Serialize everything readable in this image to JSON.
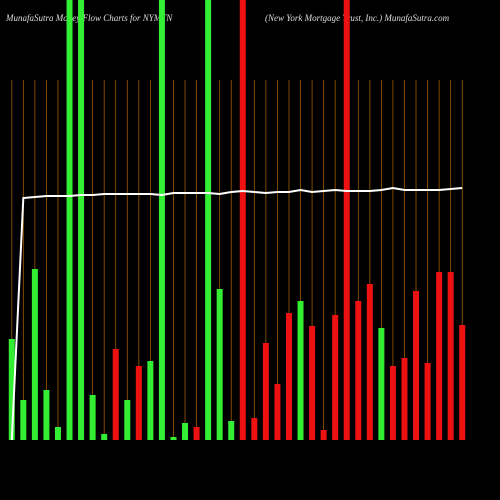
{
  "chart_data": {
    "type": "bar",
    "title": "MunafaSutra Money Flow Charts for NYMTN",
    "subtitle": "(New York Mortgage Trust, Inc.) MunafaSutra.com",
    "values": [
      101,
      40,
      171,
      50,
      13,
      440,
      440,
      45,
      6,
      91,
      40,
      74,
      79,
      440,
      3,
      17,
      13,
      440,
      151,
      19,
      440,
      22,
      97,
      56,
      127,
      139,
      114,
      10,
      125,
      440,
      139,
      156,
      112,
      74,
      82,
      149,
      77,
      168,
      168,
      115
    ],
    "colors": [
      "#33ee33",
      "#33ee33",
      "#33ee33",
      "#33ee33",
      "#33ee33",
      "#33ee33",
      "#33ee33",
      "#33ee33",
      "#33ee33",
      "#ee1111",
      "#33ee33",
      "#ee1111",
      "#33ee33",
      "#33ee33",
      "#33ee33",
      "#33ee33",
      "#ee1111",
      "#33ee33",
      "#33ee33",
      "#33ee33",
      "#ee1111",
      "#ee1111",
      "#ee1111",
      "#ee1111",
      "#ee1111",
      "#33ee33",
      "#ee1111",
      "#ee1111",
      "#ee1111",
      "#ee1111",
      "#ee1111",
      "#ee1111",
      "#33ee33",
      "#ee1111",
      "#ee1111",
      "#ee1111",
      "#ee1111",
      "#ee1111",
      "#ee1111",
      "#ee1111"
    ],
    "line": [
      0,
      242,
      243,
      244,
      244,
      244,
      245,
      245,
      246,
      246,
      246,
      246,
      246,
      245,
      247,
      247,
      247,
      247,
      246,
      248,
      249,
      248,
      247,
      248,
      248,
      250,
      248,
      249,
      250,
      249,
      249,
      249,
      250,
      252,
      250,
      250,
      250,
      250,
      251,
      252
    ],
    "line_color": "#ffffff",
    "ylim": [
      0,
      440
    ]
  }
}
